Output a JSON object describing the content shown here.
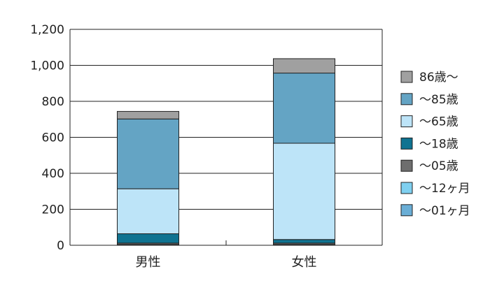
{
  "chart_data": {
    "type": "bar",
    "stacked": true,
    "categories": [
      "男性",
      "女性"
    ],
    "ylim": [
      0,
      1200
    ],
    "yticks": [
      0,
      200,
      400,
      600,
      800,
      1000,
      1200
    ],
    "ytick_labels": [
      "0",
      "200",
      "400",
      "600",
      "800",
      "1,000",
      "1,200"
    ],
    "grid": true,
    "legend_position": "right",
    "series": [
      {
        "name": "～01ヶ月",
        "color": "#6aaed6",
        "values": [
          2,
          2
        ]
      },
      {
        "name": "～12ヶ月",
        "color": "#7fd0f0",
        "values": [
          2,
          2
        ]
      },
      {
        "name": "～05歳",
        "color": "#6e6e6e",
        "values": [
          8,
          8
        ]
      },
      {
        "name": "～18歳",
        "color": "#0f7391",
        "values": [
          52,
          20
        ]
      },
      {
        "name": "～65歳",
        "color": "#bde4f8",
        "values": [
          250,
          535
        ]
      },
      {
        "name": "～85歳",
        "color": "#64a4c4",
        "values": [
          388,
          390
        ]
      },
      {
        "name": "86歳～",
        "color": "#a0a0a0",
        "values": [
          42,
          80
        ]
      }
    ]
  }
}
